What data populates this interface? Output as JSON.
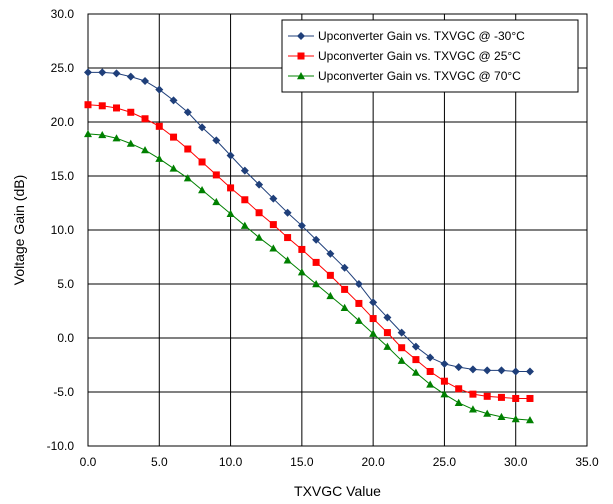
{
  "chart_data": {
    "type": "line",
    "title": "",
    "xlabel": "TXVGC Value",
    "ylabel": "Voltage Gain (dB)",
    "xlim": [
      0,
      35
    ],
    "ylim": [
      -10,
      30
    ],
    "x_ticks": [
      "0.0",
      "5.0",
      "10.0",
      "15.0",
      "20.0",
      "25.0",
      "30.0",
      "35.0"
    ],
    "y_ticks": [
      "-10.0",
      "-5.0",
      "0.0",
      "5.0",
      "10.0",
      "15.0",
      "20.0",
      "25.0",
      "30.0"
    ],
    "x_tick_values": [
      0,
      5,
      10,
      15,
      20,
      25,
      30,
      35
    ],
    "y_tick_values": [
      -10,
      -5,
      0,
      5,
      10,
      15,
      20,
      25,
      30
    ],
    "grid": true,
    "legend_position": "top-right",
    "x": [
      0,
      1,
      2,
      3,
      4,
      5,
      6,
      7,
      8,
      9,
      10,
      11,
      12,
      13,
      14,
      15,
      16,
      17,
      18,
      19,
      20,
      21,
      22,
      23,
      24,
      25,
      26,
      27,
      28,
      29,
      30,
      31
    ],
    "series": [
      {
        "name": "Upconverter Gain vs. TXVGC @ -30°C",
        "color": "#1f3f7a",
        "marker": "diamond",
        "values": [
          24.6,
          24.6,
          24.5,
          24.2,
          23.8,
          23.0,
          22.0,
          20.9,
          19.5,
          18.3,
          16.9,
          15.5,
          14.2,
          12.9,
          11.6,
          10.4,
          9.1,
          7.8,
          6.5,
          5.0,
          3.3,
          1.9,
          0.5,
          -0.8,
          -1.8,
          -2.4,
          -2.7,
          -2.9,
          -3.0,
          -3.0,
          -3.1,
          -3.1
        ]
      },
      {
        "name": "Upconverter Gain vs. TXVGC @ 25°C",
        "color": "#ff0000",
        "marker": "square",
        "values": [
          21.6,
          21.5,
          21.3,
          20.9,
          20.3,
          19.6,
          18.6,
          17.5,
          16.3,
          15.1,
          13.9,
          12.8,
          11.6,
          10.5,
          9.3,
          8.2,
          7.0,
          5.8,
          4.5,
          3.2,
          1.8,
          0.5,
          -0.9,
          -2.0,
          -3.1,
          -4.0,
          -4.7,
          -5.2,
          -5.4,
          -5.5,
          -5.6,
          -5.6
        ]
      },
      {
        "name": "Upconverter Gain vs. TXVGC @ 70°C",
        "color": "#008000",
        "marker": "triangle",
        "values": [
          18.9,
          18.8,
          18.5,
          18.0,
          17.4,
          16.6,
          15.7,
          14.8,
          13.7,
          12.6,
          11.5,
          10.4,
          9.3,
          8.3,
          7.2,
          6.1,
          5.0,
          3.9,
          2.8,
          1.6,
          0.4,
          -0.8,
          -2.1,
          -3.2,
          -4.3,
          -5.2,
          -6.0,
          -6.6,
          -7.0,
          -7.3,
          -7.5,
          -7.6
        ]
      }
    ]
  }
}
